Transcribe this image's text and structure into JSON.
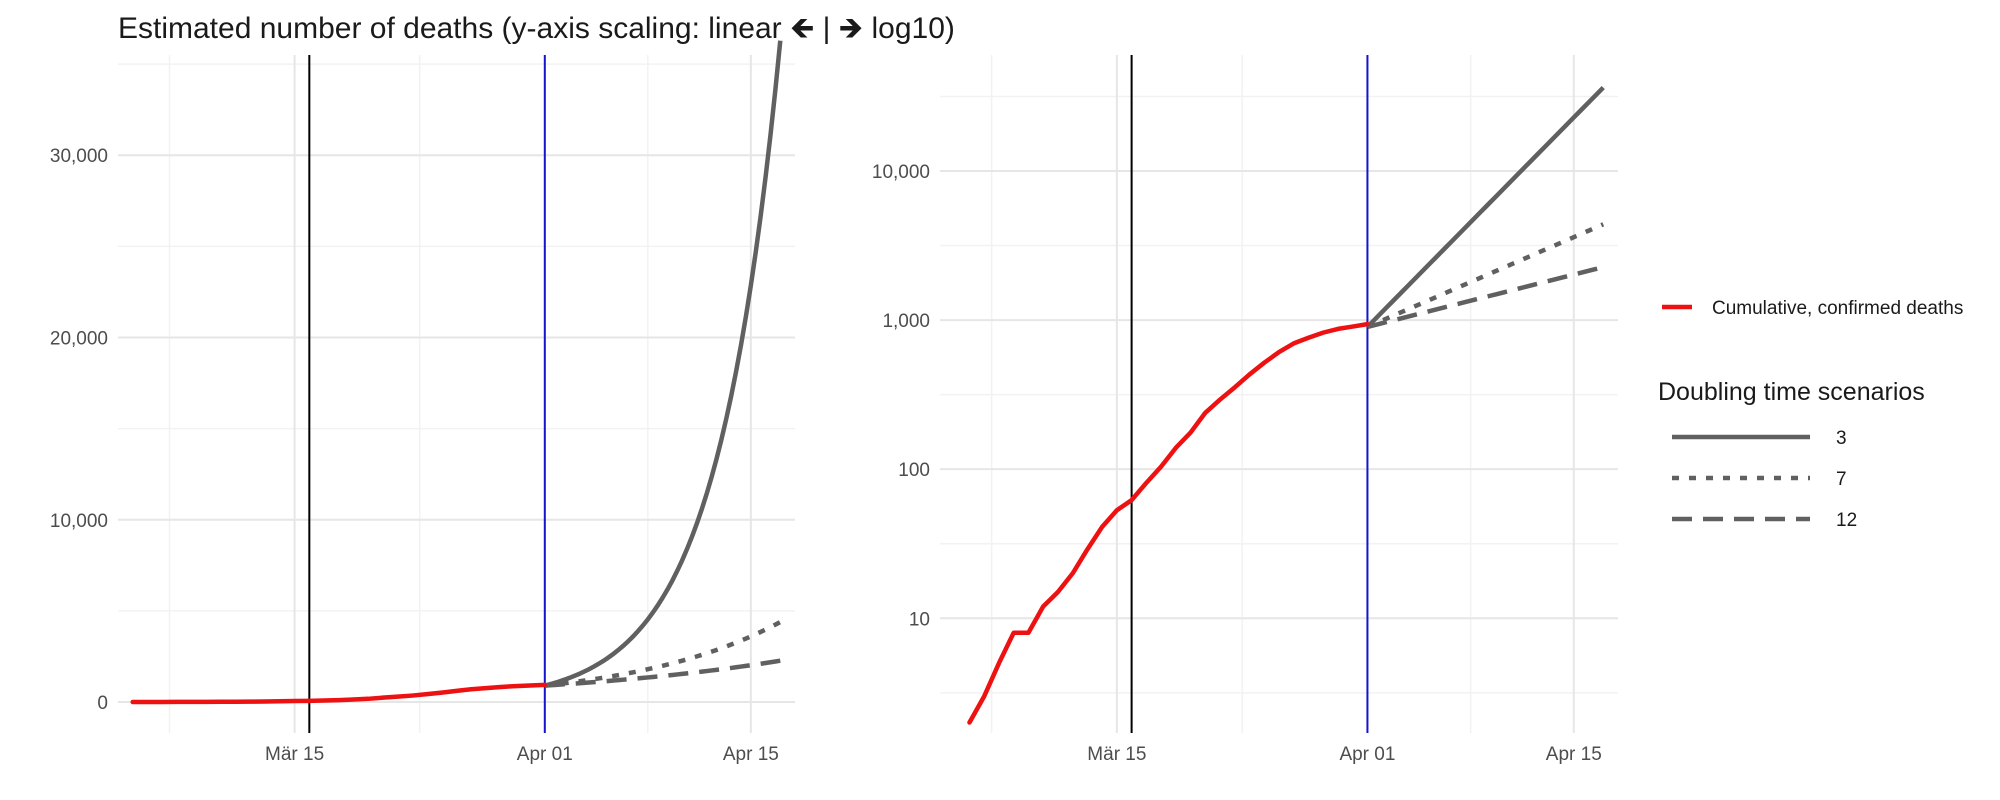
{
  "title": "Estimated number of deaths (y-axis scaling: linear 🡸 | 🡺 log10)",
  "colors": {
    "confirmed": "#ee1111",
    "scenario": "#606060",
    "vline_black": "#000000",
    "vline_blue": "#1515cc",
    "grid_major": "#e6e6e6",
    "grid_minor": "#f2f2f2"
  },
  "legend": {
    "series_label": "Cumulative, confirmed deaths",
    "scenario_title": "Doubling time scenarios",
    "scenarios": [
      "3",
      "7",
      "12"
    ],
    "placement": "right"
  },
  "chart_data": [
    {
      "type": "line",
      "panel": "linear",
      "yscale": "linear",
      "title": "",
      "xlabel": "",
      "ylabel": "",
      "xlim": [
        "2020-03-03",
        "2020-04-18"
      ],
      "ylim": [
        -1700,
        35500
      ],
      "x_ticks": [
        {
          "date": "2020-03-15",
          "label": "Mär 15"
        },
        {
          "date": "2020-04-01",
          "label": "Apr 01"
        },
        {
          "date": "2020-04-15",
          "label": "Apr 15"
        }
      ],
      "y_ticks": [
        {
          "value": 0,
          "label": "0"
        },
        {
          "value": 10000,
          "label": "10,000"
        },
        {
          "value": 20000,
          "label": "20,000"
        },
        {
          "value": 30000,
          "label": "30,000"
        }
      ],
      "vlines": [
        {
          "date": "2020-03-16",
          "color": "black"
        },
        {
          "date": "2020-04-01",
          "color": "blue"
        }
      ],
      "grid": true
    },
    {
      "type": "line",
      "panel": "log10",
      "yscale": "log10",
      "title": "",
      "xlabel": "",
      "ylabel": "",
      "xlim": [
        "2020-03-03",
        "2020-04-18"
      ],
      "ylim": [
        1.7,
        60000
      ],
      "x_ticks": [
        {
          "date": "2020-03-15",
          "label": "Mär 15"
        },
        {
          "date": "2020-04-01",
          "label": "Apr 01"
        },
        {
          "date": "2020-04-15",
          "label": "Apr 15"
        }
      ],
      "y_ticks": [
        {
          "value": 10,
          "label": "10"
        },
        {
          "value": 100,
          "label": "100"
        },
        {
          "value": 1000,
          "label": "1,000"
        },
        {
          "value": 10000,
          "label": "10,000"
        }
      ],
      "vlines": [
        {
          "date": "2020-03-16",
          "color": "black"
        },
        {
          "date": "2020-04-01",
          "color": "blue"
        }
      ],
      "grid": true
    }
  ],
  "series": {
    "confirmed": {
      "name": "Cumulative, confirmed deaths",
      "x": [
        "2020-03-05",
        "2020-03-06",
        "2020-03-07",
        "2020-03-08",
        "2020-03-09",
        "2020-03-10",
        "2020-03-11",
        "2020-03-12",
        "2020-03-13",
        "2020-03-14",
        "2020-03-15",
        "2020-03-16",
        "2020-03-17",
        "2020-03-18",
        "2020-03-19",
        "2020-03-20",
        "2020-03-21",
        "2020-03-22",
        "2020-03-23",
        "2020-03-24",
        "2020-03-25",
        "2020-03-26",
        "2020-03-27",
        "2020-03-28",
        "2020-03-29",
        "2020-03-30",
        "2020-03-31",
        "2020-04-01"
      ],
      "values": [
        2,
        3,
        5,
        8,
        8,
        12,
        15,
        20,
        29,
        41,
        53,
        62,
        81,
        104,
        139,
        176,
        239,
        293,
        354,
        432,
        518,
        610,
        698,
        761,
        824,
        873,
        905,
        940
      ]
    },
    "scenarios": [
      {
        "name": "3",
        "dash": "solid",
        "x": [
          "2020-04-01",
          "2020-04-17"
        ],
        "start": 900,
        "doubling_days": 3
      },
      {
        "name": "7",
        "dash": "dotted",
        "x": [
          "2020-04-01",
          "2020-04-17"
        ],
        "start": 900,
        "doubling_days": 7
      },
      {
        "name": "12",
        "dash": "dashed",
        "x": [
          "2020-04-01",
          "2020-04-17"
        ],
        "start": 900,
        "doubling_days": 12
      }
    ]
  }
}
